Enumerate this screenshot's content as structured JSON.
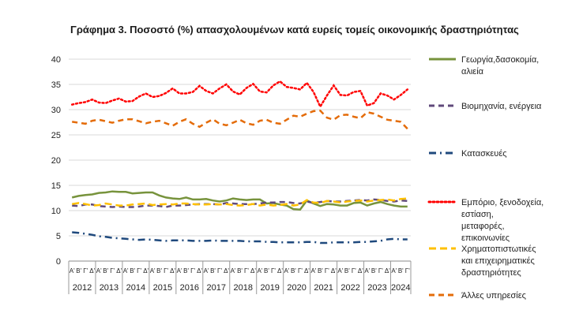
{
  "chart_data": {
    "type": "line",
    "title": "Γράφημα 3. Ποσοστό (%) απασχολουμένων κατά ευρείς τομείς οικονομικής δραστηριότητας",
    "xlabel": "",
    "ylabel": "",
    "ylim": [
      0,
      40
    ],
    "yticks": [
      0,
      5,
      10,
      15,
      20,
      25,
      30,
      35,
      40
    ],
    "grid": true,
    "legend_position": "right",
    "quarters": [
      "Α'",
      "Β'",
      "Γ'",
      "Δ'"
    ],
    "years": [
      "2012",
      "2013",
      "2014",
      "2015",
      "2016",
      "2017",
      "2018",
      "2019",
      "2020",
      "2021",
      "2022",
      "2023",
      "2024"
    ],
    "x": [
      "2012 Α'",
      "2012 Β'",
      "2012 Γ'",
      "2012 Δ'",
      "2013 Α'",
      "2013 Β'",
      "2013 Γ'",
      "2013 Δ'",
      "2014 Α'",
      "2014 Β'",
      "2014 Γ'",
      "2014 Δ'",
      "2015 Α'",
      "2015 Β'",
      "2015 Γ'",
      "2015 Δ'",
      "2016 Α'",
      "2016 Β'",
      "2016 Γ'",
      "2016 Δ'",
      "2017 Α'",
      "2017 Β'",
      "2017 Γ'",
      "2017 Δ'",
      "2018 Α'",
      "2018 Β'",
      "2018 Γ'",
      "2018 Δ'",
      "2019 Α'",
      "2019 Β'",
      "2019 Γ'",
      "2019 Δ'",
      "2020 Α'",
      "2020 Β'",
      "2020 Γ'",
      "2020 Δ'",
      "2021 Α'",
      "2021 Β'",
      "2021 Γ'",
      "2021 Δ'",
      "2022 Α'",
      "2022 Β'",
      "2022 Γ'",
      "2022 Δ'",
      "2023 Α'",
      "2023 Β'",
      "2023 Γ'",
      "2023 Δ'",
      "2024 Α'",
      "2024 Β'",
      "2024 Γ'"
    ],
    "series": [
      {
        "name": "Γεωργία,δασοκομία, αλιεία",
        "color": "#77933c",
        "dash": "solid",
        "values": [
          12.6,
          12.9,
          13.1,
          13.2,
          13.5,
          13.6,
          13.8,
          13.7,
          13.7,
          13.4,
          13.5,
          13.6,
          13.6,
          13.0,
          12.6,
          12.4,
          12.3,
          12.6,
          12.2,
          12.2,
          12.3,
          12.0,
          11.8,
          12.0,
          12.4,
          12.2,
          12.1,
          12.2,
          12.2,
          11.4,
          11.5,
          11.2,
          11.0,
          10.3,
          10.2,
          12.0,
          11.4,
          10.9,
          11.3,
          11.2,
          11.0,
          11.0,
          11.5,
          11.6,
          11.0,
          11.4,
          11.7,
          11.3,
          11.0,
          10.8,
          10.8
        ]
      },
      {
        "name": "Βιομηχανία, ενέργεια",
        "color": "#604a7b",
        "dash": "7,5",
        "values": [
          11.0,
          10.9,
          11.2,
          11.2,
          10.9,
          10.8,
          10.7,
          10.8,
          10.7,
          10.7,
          10.8,
          11.0,
          11.0,
          10.9,
          10.7,
          11.0,
          11.0,
          11.1,
          11.2,
          11.3,
          11.3,
          11.3,
          11.2,
          11.5,
          11.4,
          11.3,
          11.3,
          11.3,
          11.4,
          11.6,
          11.6,
          11.7,
          11.7,
          11.5,
          11.4,
          11.8,
          11.5,
          11.7,
          11.9,
          11.8,
          11.8,
          11.9,
          12.0,
          12.1,
          12.0,
          12.2,
          12.1,
          11.9,
          11.8,
          12.0,
          11.9
        ]
      },
      {
        "name": "Κατασκευές",
        "color": "#1f497d",
        "dash": "9,5,2,5",
        "values": [
          5.7,
          5.6,
          5.4,
          5.2,
          4.9,
          4.8,
          4.6,
          4.5,
          4.4,
          4.3,
          4.2,
          4.3,
          4.2,
          4.1,
          4.0,
          4.1,
          4.1,
          4.1,
          4.0,
          4.0,
          4.0,
          4.1,
          4.0,
          4.0,
          4.0,
          4.0,
          3.9,
          3.9,
          3.9,
          3.8,
          3.8,
          3.7,
          3.7,
          3.7,
          3.7,
          3.8,
          3.8,
          3.6,
          3.6,
          3.7,
          3.7,
          3.7,
          3.7,
          3.8,
          3.8,
          3.9,
          4.0,
          4.3,
          4.4,
          4.3,
          4.3
        ]
      },
      {
        "name": "Εμπόριο, ξενοδοχεία, εστίαση, μεταφορές, επικοινωνίες",
        "color": "#ff0000",
        "dash": "2,3",
        "values": [
          31.0,
          31.3,
          31.5,
          32.0,
          31.4,
          31.3,
          31.8,
          32.2,
          31.6,
          31.7,
          32.6,
          33.2,
          32.5,
          32.7,
          33.3,
          34.2,
          33.2,
          33.2,
          33.5,
          34.7,
          33.7,
          33.2,
          34.2,
          35.0,
          33.6,
          33.0,
          34.3,
          35.1,
          33.6,
          33.4,
          34.8,
          35.6,
          34.5,
          34.3,
          34.0,
          35.3,
          33.5,
          30.6,
          32.8,
          34.8,
          32.9,
          32.8,
          33.5,
          33.7,
          30.8,
          31.3,
          33.2,
          32.8,
          32.0,
          32.9,
          34.0
        ]
      },
      {
        "name": "Χρηματοπιστωτικές και επιχειρηματικές δραστηριότητες",
        "color": "#ffc000",
        "dash": "9,5",
        "values": [
          11.3,
          11.5,
          11.3,
          11.0,
          11.1,
          11.4,
          11.2,
          11.0,
          11.0,
          11.2,
          11.3,
          11.4,
          11.1,
          11.2,
          11.3,
          11.2,
          11.4,
          11.4,
          11.3,
          11.2,
          11.2,
          11.3,
          11.2,
          11.3,
          11.1,
          11.0,
          11.1,
          11.3,
          11.0,
          11.2,
          11.0,
          11.1,
          11.3,
          11.0,
          11.2,
          12.1,
          11.6,
          11.5,
          11.9,
          11.8,
          11.6,
          11.8,
          11.9,
          12.0,
          11.8,
          12.0,
          12.1,
          12.2,
          12.0,
          12.3,
          12.4
        ]
      },
      {
        "name": "Άλλες υπηρεσίες",
        "color": "#e46c0a",
        "dash": "7,5",
        "values": [
          27.6,
          27.4,
          27.2,
          27.8,
          28.0,
          27.7,
          27.4,
          27.8,
          28.1,
          28.1,
          27.7,
          27.3,
          27.6,
          27.8,
          27.3,
          26.8,
          27.6,
          28.1,
          27.2,
          26.6,
          27.4,
          28.1,
          27.2,
          26.9,
          27.4,
          28.0,
          27.3,
          27.0,
          27.8,
          28.0,
          27.4,
          27.2,
          28.0,
          28.8,
          28.6,
          29.2,
          29.7,
          29.8,
          28.4,
          28.0,
          28.9,
          29.0,
          28.6,
          28.3,
          29.5,
          29.2,
          28.6,
          28.0,
          27.8,
          27.6,
          26.2
        ]
      }
    ]
  }
}
